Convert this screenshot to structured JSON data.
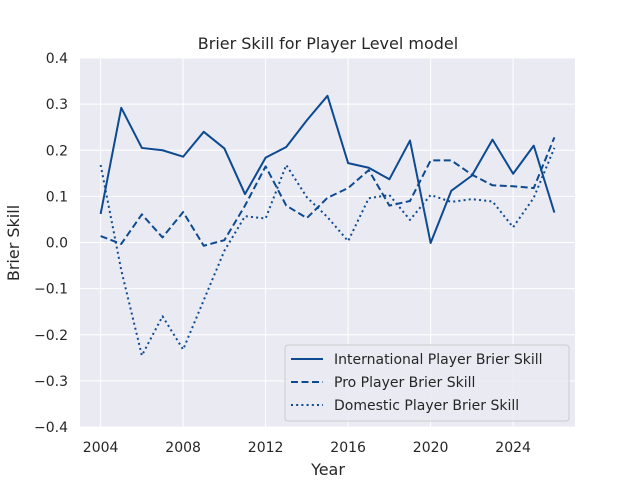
{
  "chart_data": {
    "type": "line",
    "title": "Brier Skill for Player Level model",
    "xlabel": "Year",
    "ylabel": "Brier Skill",
    "xlim": [
      2003,
      2027
    ],
    "ylim": [
      -0.4,
      0.4
    ],
    "x_ticks": [
      2004,
      2008,
      2012,
      2016,
      2020,
      2024
    ],
    "y_ticks": [
      -0.4,
      -0.3,
      -0.2,
      -0.1,
      0.0,
      0.1,
      0.2,
      0.3,
      0.4
    ],
    "x_tick_labels": [
      "2004",
      "2008",
      "2012",
      "2016",
      "2020",
      "2024"
    ],
    "y_tick_labels": [
      "−0.4",
      "−0.3",
      "−0.2",
      "−0.1",
      "0.0",
      "0.1",
      "0.2",
      "0.3",
      "0.4"
    ],
    "grid": true,
    "legend_position": "lower-right",
    "x": [
      2004,
      2005,
      2006,
      2007,
      2008,
      2009,
      2010,
      2011,
      2012,
      2013,
      2014,
      2015,
      2016,
      2017,
      2018,
      2019,
      2020,
      2021,
      2022,
      2023,
      2024,
      2025,
      2026
    ],
    "series": [
      {
        "name": "International Player Brier Skill",
        "style": "solid",
        "color": "#0d4a91",
        "values": [
          0.062,
          0.292,
          0.205,
          0.2,
          0.186,
          0.24,
          0.204,
          0.105,
          0.184,
          0.207,
          0.265,
          0.318,
          0.172,
          0.162,
          0.137,
          0.221,
          -0.001,
          0.112,
          0.145,
          0.223,
          0.149,
          0.21,
          0.065
        ]
      },
      {
        "name": "Pro Player Brier Skill",
        "style": "dashed",
        "color": "#0d4a91",
        "values": [
          0.014,
          -0.003,
          0.061,
          0.011,
          0.066,
          -0.007,
          0.005,
          0.08,
          0.165,
          0.08,
          0.053,
          0.097,
          0.118,
          0.157,
          0.08,
          0.09,
          0.178,
          0.178,
          0.147,
          0.124,
          0.122,
          0.118,
          0.228
        ]
      },
      {
        "name": "Domestic Player Brier Skill",
        "style": "dotted",
        "color": "#0d4a91",
        "values": [
          0.168,
          -0.06,
          -0.245,
          -0.16,
          -0.232,
          -0.125,
          -0.018,
          0.057,
          0.052,
          0.168,
          0.098,
          0.055,
          0.003,
          0.096,
          0.103,
          0.049,
          0.103,
          0.088,
          0.094,
          0.089,
          0.033,
          0.097,
          0.205
        ]
      }
    ]
  },
  "style": {
    "plot_background": "#eaeaf2",
    "grid_color": "#ffffff",
    "line_color": "#0d4a91",
    "legend_background": "#eaeaf2",
    "legend_border": "#cccccc"
  }
}
